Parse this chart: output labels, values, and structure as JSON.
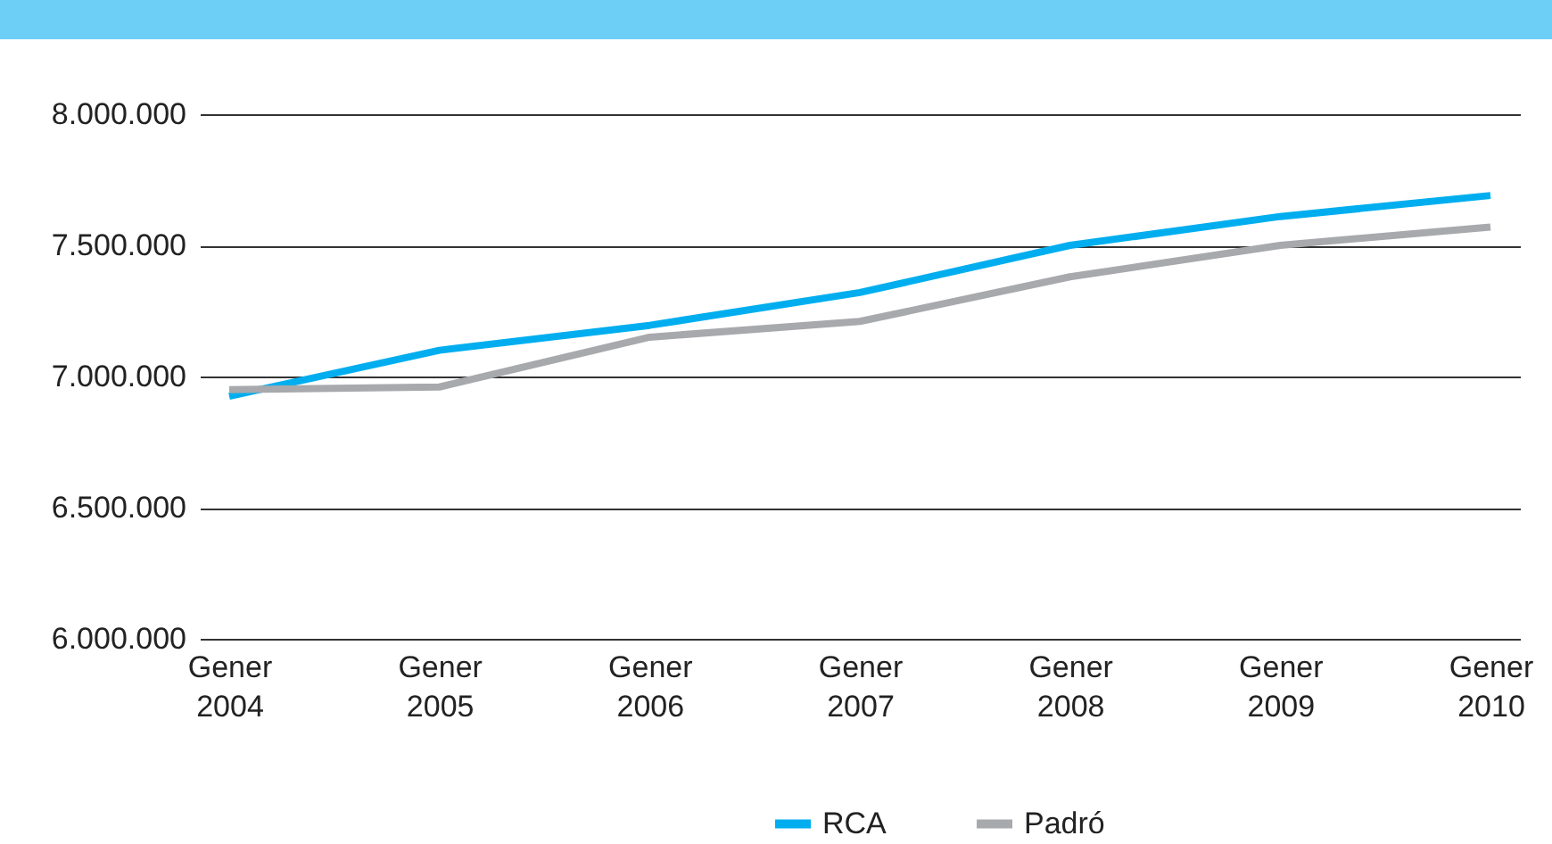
{
  "chart_data": {
    "type": "line",
    "categories": [
      "Gener 2004",
      "Gener 2005",
      "Gener 2006",
      "Gener 2007",
      "Gener 2008",
      "Gener 2009",
      "Gener 2010"
    ],
    "series": [
      {
        "name": "RCA",
        "color": "#00aeef",
        "values": [
          6925000,
          7100000,
          7195000,
          7320000,
          7500000,
          7610000,
          7690000
        ]
      },
      {
        "name": "Padró",
        "color": "#a7a9ac",
        "values": [
          6950000,
          6960000,
          7150000,
          7210000,
          7380000,
          7500000,
          7570000
        ]
      }
    ],
    "ylim": [
      6000000,
      8000000
    ],
    "yticks": [
      {
        "value": 6000000,
        "label": "6.000.000"
      },
      {
        "value": 6500000,
        "label": "6.500.000"
      },
      {
        "value": 7000000,
        "label": "7.000.000"
      },
      {
        "value": 7500000,
        "label": "7.500.000"
      },
      {
        "value": 8000000,
        "label": "8.000.000"
      }
    ],
    "grid": "y",
    "legend": "bottom",
    "marker": "none",
    "line_style": "solid"
  }
}
